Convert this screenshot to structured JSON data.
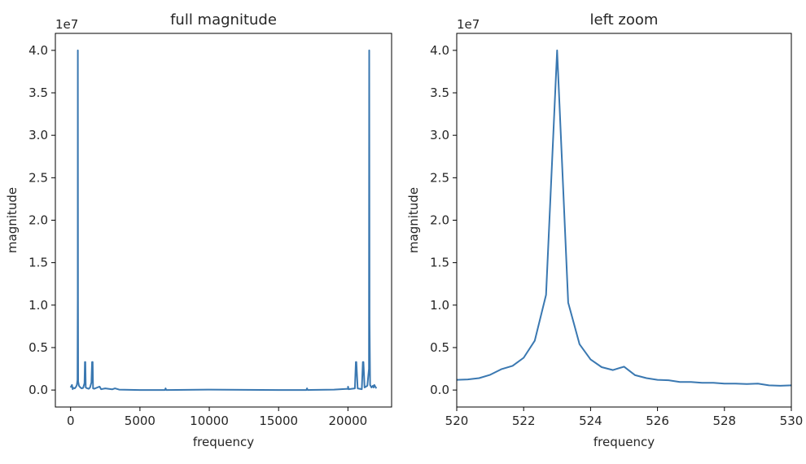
{
  "chart_data": [
    {
      "type": "line",
      "title": "full magnitude",
      "xlabel": "frequency",
      "ylabel": "magnitude",
      "offset_text": "1e7",
      "xlim": [
        -1100,
        23150
      ],
      "ylim": [
        -2000000,
        42000000
      ],
      "xticks": [
        0,
        5000,
        10000,
        15000,
        20000
      ],
      "xtick_labels": [
        "0",
        "5000",
        "10000",
        "15000",
        "20000"
      ],
      "yticks": [
        0,
        5000000,
        10000000,
        15000000,
        20000000,
        25000000,
        30000000,
        35000000,
        40000000
      ],
      "ytick_labels": [
        "0.0",
        "0.5",
        "1.0",
        "1.5",
        "2.0",
        "2.5",
        "3.0",
        "3.5",
        "4.0"
      ],
      "grid": false,
      "series": [
        {
          "color": "#3a78b1",
          "x": [
            0,
            100,
            150,
            200,
            300,
            400,
            450,
            500,
            515,
            523,
            531,
            545,
            600,
            700,
            800,
            900,
            1000,
            1030,
            1046,
            1062,
            1090,
            1200,
            1300,
            1400,
            1500,
            1550,
            1569,
            1588,
            1620,
            1700,
            2000,
            2092,
            2200,
            2500,
            3000,
            3200,
            3500,
            5000,
            6800,
            6850,
            6900,
            10000,
            15000,
            17000,
            17050,
            17100,
            19000,
            19500,
            20000,
            20010,
            20050,
            20500,
            20570,
            20590,
            20610,
            20700,
            21000,
            21080,
            21100,
            21120,
            21200,
            21400,
            21520,
            21538,
            21556,
            21600,
            21700,
            21800,
            21850,
            21900,
            22050
          ],
          "y": [
            300000,
            600000,
            100000,
            250000,
            200000,
            400000,
            600000,
            1200000,
            11000000,
            40000000,
            10500000,
            1000000,
            500000,
            300000,
            200000,
            250000,
            800000,
            3300000,
            3300000,
            3300000,
            300000,
            200000,
            150000,
            300000,
            900000,
            3300000,
            3300000,
            3300000,
            200000,
            150000,
            350000,
            400000,
            100000,
            200000,
            80000,
            200000,
            50000,
            0,
            0,
            200000,
            0,
            50000,
            0,
            0,
            200000,
            0,
            50000,
            100000,
            150000,
            400000,
            100000,
            200000,
            3300000,
            3300000,
            3300000,
            200000,
            100000,
            3300000,
            3300000,
            3300000,
            300000,
            500000,
            2500000,
            40000000,
            8000000,
            600000,
            300000,
            500000,
            300000,
            600000,
            200000
          ]
        }
      ]
    },
    {
      "type": "line",
      "title": "left zoom",
      "xlabel": "frequency",
      "ylabel": "magnitude",
      "offset_text": "1e7",
      "xlim": [
        520,
        530
      ],
      "ylim": [
        -2000000,
        42000000
      ],
      "xticks": [
        520,
        522,
        524,
        526,
        528,
        530
      ],
      "xtick_labels": [
        "520",
        "522",
        "524",
        "526",
        "528",
        "530"
      ],
      "yticks": [
        0,
        5000000,
        10000000,
        15000000,
        20000000,
        25000000,
        30000000,
        35000000,
        40000000
      ],
      "ytick_labels": [
        "0.0",
        "0.5",
        "1.0",
        "1.5",
        "2.0",
        "2.5",
        "3.0",
        "3.5",
        "4.0"
      ],
      "grid": false,
      "series": [
        {
          "color": "#3a78b1",
          "x": [
            520,
            520.33,
            520.67,
            521,
            521.33,
            521.67,
            522,
            522.33,
            522.67,
            523,
            523.33,
            523.67,
            524,
            524.33,
            524.67,
            525,
            525.33,
            525.67,
            526,
            526.33,
            526.67,
            527,
            527.33,
            527.67,
            528,
            528.33,
            528.67,
            529,
            529.33,
            529.67,
            530
          ],
          "y": [
            1200000,
            1250000,
            1400000,
            1800000,
            2450000,
            2850000,
            3800000,
            5800000,
            11200000,
            40000000,
            10300000,
            5400000,
            3600000,
            2700000,
            2350000,
            2750000,
            1750000,
            1400000,
            1200000,
            1150000,
            950000,
            950000,
            850000,
            850000,
            750000,
            750000,
            700000,
            750000,
            550000,
            500000,
            550000
          ]
        }
      ]
    }
  ]
}
